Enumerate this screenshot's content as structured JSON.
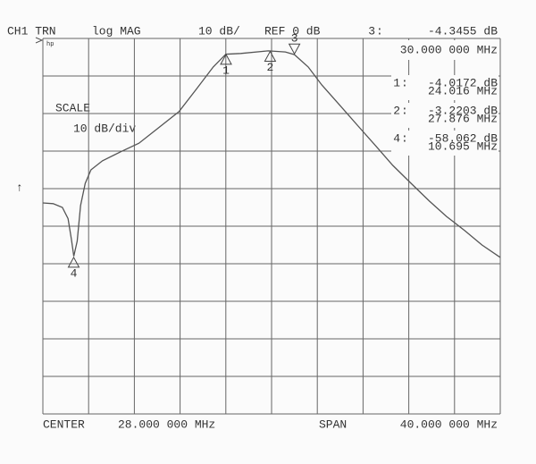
{
  "chart_data": {
    "type": "line",
    "header": {
      "channel": "CH1 TRN",
      "format": "log MAG",
      "scale": "10 dB/",
      "reference": "REF 0 dB",
      "logo": "hp"
    },
    "scale_label": "SCALE",
    "scale_value": "10 dB/div",
    "side_arrow": "↑",
    "footer": {
      "center_label": "CENTER",
      "center_value": "28.000 000 MHz",
      "span_label": "SPAN",
      "span_value": "40.000 000 MHz"
    },
    "xlim": [
      8,
      48
    ],
    "ylim": [
      -100,
      0
    ],
    "xticks": [
      8,
      12,
      16,
      20,
      24,
      28,
      32,
      36,
      40,
      44,
      48
    ],
    "yticks": [
      -100,
      -90,
      -80,
      -70,
      -60,
      -50,
      -40,
      -30,
      -20,
      -10,
      0
    ],
    "grid": true,
    "x": [
      8,
      8.9,
      9.7,
      10.2,
      10.5,
      10.7,
      11,
      11.3,
      11.7,
      12.2,
      13.2,
      14.8,
      16.4,
      17.9,
      19.9,
      21.4,
      22.9,
      24,
      25.3,
      27.7,
      29.2,
      30,
      31.2,
      32.4,
      34,
      35.5,
      37.1,
      38.6,
      40.2,
      41.8,
      43.3,
      44.9,
      46.4,
      48
    ],
    "series": [
      {
        "color": "#555555",
        "values": [
          -43.8,
          -44,
          -45,
          -48,
          -53.6,
          -58,
          -54,
          -44.5,
          -38.6,
          -35,
          -32.6,
          -30.2,
          -27.9,
          -24.3,
          -19.5,
          -13.6,
          -7.6,
          -4.2,
          -4,
          -3.3,
          -3.6,
          -4.3,
          -7.6,
          -12.4,
          -17.9,
          -23.1,
          -28.6,
          -33.8,
          -38.6,
          -43.3,
          -47.4,
          -51.2,
          -55,
          -58.3
        ]
      }
    ],
    "active_marker": "3",
    "markers": [
      {
        "name": "3",
        "x": 30,
        "value": -4.3455,
        "x_label": "30.000 000 MHz",
        "value_label": "-4.3455 dB"
      },
      {
        "name": "1",
        "x": 24.016,
        "value": -4.0172,
        "x_label": "24.016 MHz",
        "value_label": "-4.0172 dB"
      },
      {
        "name": "2",
        "x": 27.876,
        "value": -3.2203,
        "x_label": "27.876 MHz",
        "value_label": "-3.2203 dB"
      },
      {
        "name": "4",
        "x": 10.695,
        "value": -58.062,
        "x_label": "10.695 MHz",
        "value_label": "-58.062 dB"
      }
    ]
  }
}
